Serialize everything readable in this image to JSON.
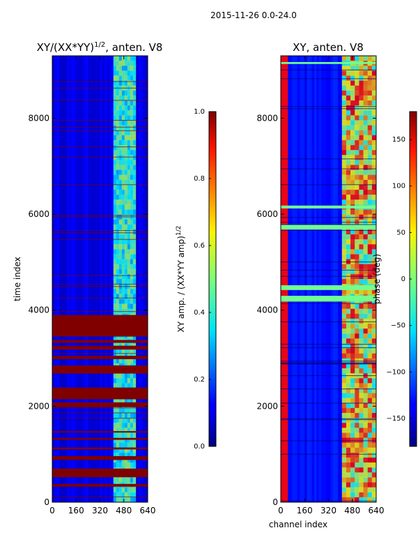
{
  "figure": {
    "suptitle": "2015-11-26 0.0-24.0"
  },
  "chart_data": [
    {
      "type": "heatmap",
      "title": "XY/(XX*YY)",
      "title_power": "1/2",
      "title_suffix": ", anten. V8",
      "xlabel": "",
      "ylabel": "time index",
      "xlim": [
        0,
        640
      ],
      "ylim": [
        0,
        9300
      ],
      "x_ticks": [
        0,
        160,
        320,
        480,
        640
      ],
      "y_ticks": [
        0,
        2000,
        4000,
        6000,
        8000
      ],
      "colorbar": {
        "label": "XY amp. / (XX*YY amp)",
        "label_power": "1/2",
        "range": [
          0.0,
          1.0
        ],
        "ticks": [
          "0.0",
          "0.2",
          "0.4",
          "0.6",
          "0.8",
          "1.0"
        ],
        "tick_values": [
          0.0,
          0.2,
          0.4,
          0.6,
          0.8,
          1.0
        ],
        "colormap": "jet"
      },
      "background_value": 0.1,
      "bright_channel_band": {
        "from": 410,
        "to": 560,
        "value_range": [
          0.3,
          0.55
        ]
      },
      "saturated_time_bands": [
        [
          3450,
          3900
        ],
        [
          2680,
          2850
        ],
        [
          2150,
          2380
        ],
        [
          1980,
          2080
        ],
        [
          2980,
          3050
        ],
        [
          3180,
          3260
        ],
        [
          3320,
          3380
        ],
        [
          880,
          960
        ],
        [
          520,
          700
        ],
        [
          330,
          380
        ],
        [
          1300,
          1340
        ],
        [
          1450,
          1480
        ],
        [
          1100,
          1140
        ]
      ],
      "saturation_value": 1.0
    },
    {
      "type": "heatmap",
      "title": "XY, anten. V8",
      "xlabel": "channel index",
      "ylabel": "",
      "xlim": [
        0,
        640
      ],
      "ylim": [
        0,
        9300
      ],
      "x_ticks": [
        0,
        160,
        320,
        480,
        640
      ],
      "y_ticks": [
        0,
        2000,
        4000,
        6000,
        8000
      ],
      "colorbar": {
        "label": "phase (deg)",
        "range": [
          -180,
          180
        ],
        "ticks": [
          "−150",
          "−100",
          "−50",
          "0",
          "50",
          "100",
          "150"
        ],
        "tick_values": [
          -150,
          -100,
          -50,
          0,
          50,
          100,
          150
        ],
        "colormap": "jet"
      },
      "background_value": -130,
      "left_red_channel_band": {
        "from": 0,
        "to": 40,
        "value": 150
      },
      "bright_channel_band": {
        "from": 410,
        "to": 640,
        "value_range": [
          -40,
          140
        ]
      },
      "flat_time_bands": [
        [
          4180,
          4300
        ],
        [
          4420,
          4520
        ],
        [
          5680,
          5780
        ],
        [
          6120,
          6180
        ],
        [
          9130,
          9170
        ]
      ],
      "flat_value": -5
    }
  ]
}
